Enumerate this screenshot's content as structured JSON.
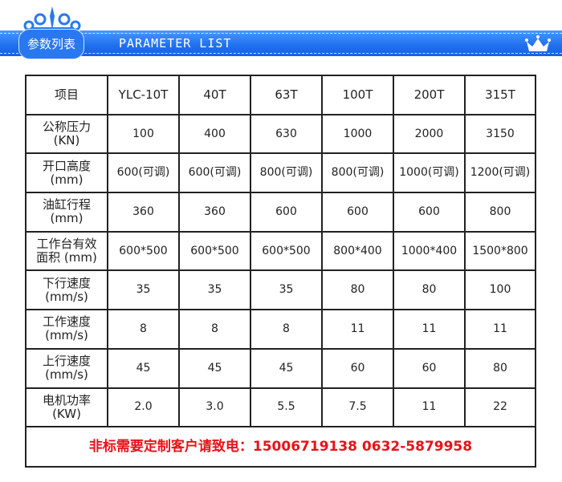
{
  "header": {
    "badge": "参数列表",
    "title": "PARAMETER LIST",
    "accent": "#1f6fef",
    "icons": [
      "crest-ornament",
      "crown-icon"
    ]
  },
  "table": {
    "columns": [
      "项目",
      "YLC-10T",
      "40T",
      "63T",
      "100T",
      "200T",
      "315T"
    ],
    "rows": [
      {
        "label": [
          "公称压力",
          "(KN)"
        ],
        "values": [
          "100",
          "400",
          "630",
          "1000",
          "2000",
          "3150"
        ]
      },
      {
        "label": [
          "开口高度",
          "(mm)"
        ],
        "values": [
          "600(可调)",
          "600(可调)",
          "800(可调)",
          "800(可调)",
          "1000(可调)",
          "1200(可调)"
        ]
      },
      {
        "label": [
          "油缸行程",
          "(mm)"
        ],
        "values": [
          "360",
          "360",
          "600",
          "600",
          "600",
          "800"
        ]
      },
      {
        "label": [
          "工作台有效",
          "面积 (mm)"
        ],
        "values": [
          "600*500",
          "600*500",
          "600*500",
          "800*400",
          "1000*400",
          "1500*800"
        ]
      },
      {
        "label": [
          "下行速度",
          "(mm/s)"
        ],
        "values": [
          "35",
          "35",
          "35",
          "80",
          "80",
          "100"
        ]
      },
      {
        "label": [
          "工作速度",
          "(mm/s)"
        ],
        "values": [
          "8",
          "8",
          "8",
          "11",
          "11",
          "11"
        ]
      },
      {
        "label": [
          "上行速度",
          "(mm/s)"
        ],
        "values": [
          "45",
          "45",
          "45",
          "60",
          "60",
          "80"
        ]
      },
      {
        "label": [
          "电机功率",
          "(KW)"
        ],
        "values": [
          "2.0",
          "3.0",
          "5.5",
          "7.5",
          "11",
          "22"
        ]
      }
    ],
    "footer": "非标需要定制客户请致电：15006719138  0632-5879958",
    "footer_color": "#e8121a"
  }
}
